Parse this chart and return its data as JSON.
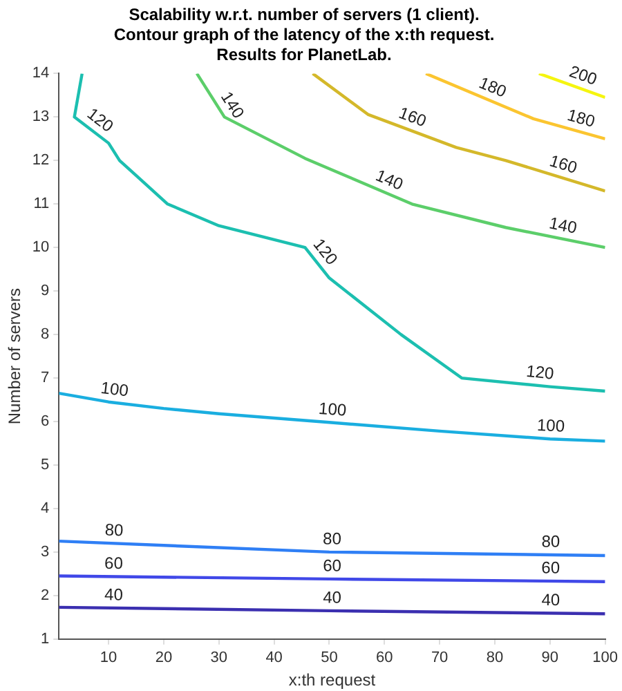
{
  "chart_data": {
    "type": "line",
    "title": "Scalability w.r.t. number of servers (1 client).\nContour graph of the latency of the x:th request.\nResults for PlanetLab.",
    "xlabel": "x:th request",
    "ylabel": "Number of servers",
    "xlim": [
      1,
      100
    ],
    "xticks": [
      10,
      20,
      30,
      40,
      50,
      60,
      70,
      80,
      90,
      100
    ],
    "ylim": [
      1,
      14
    ],
    "yticks": [
      1,
      2,
      3,
      4,
      5,
      6,
      7,
      8,
      9,
      10,
      11,
      12,
      13,
      14
    ],
    "grid": false,
    "legend": false,
    "marker": "none",
    "line_style": "solid",
    "series": [
      {
        "name": "40",
        "color": "#3b2fb0",
        "x": [
          1,
          50,
          100
        ],
        "values": [
          1.73,
          1.65,
          1.58
        ]
      },
      {
        "name": "60",
        "color": "#4048e8",
        "x": [
          1,
          50,
          100
        ],
        "values": [
          2.45,
          2.38,
          2.32
        ]
      },
      {
        "name": "80",
        "color": "#2f7ff5",
        "x": [
          1,
          50,
          100
        ],
        "values": [
          3.25,
          3.0,
          2.92
        ]
      },
      {
        "name": "100",
        "color": "#1aaee0",
        "x": [
          1,
          10,
          20,
          30,
          50,
          70,
          90,
          100
        ],
        "values": [
          6.65,
          6.45,
          6.3,
          6.18,
          5.98,
          5.78,
          5.6,
          5.55
        ]
      },
      {
        "name": "120",
        "color": "#1cbfb0",
        "x": [
          5.2,
          3.8,
          10,
          12,
          20.7,
          30,
          45.6,
          50,
          63,
          74,
          90,
          100
        ],
        "values": [
          14,
          13,
          12.4,
          12,
          11,
          10.5,
          10,
          9.3,
          8,
          7,
          6.8,
          6.7
        ]
      },
      {
        "name": "140",
        "color": "#5cce6a",
        "x": [
          26,
          31,
          45.6,
          65,
          82,
          100
        ],
        "values": [
          14,
          13,
          12.05,
          11,
          10.46,
          10
        ]
      },
      {
        "name": "160",
        "color": "#d4b82a",
        "x": [
          47,
          57,
          73,
          82,
          100
        ],
        "values": [
          14,
          13.06,
          12.3,
          12.0,
          11.3
        ]
      },
      {
        "name": "180",
        "color": "#fbc530",
        "x": [
          67.5,
          87,
          100
        ],
        "values": [
          14,
          12.96,
          12.5
        ]
      },
      {
        "name": "200",
        "color": "#f5f50f",
        "x": [
          88,
          100
        ],
        "values": [
          14,
          13.45
        ]
      }
    ]
  }
}
